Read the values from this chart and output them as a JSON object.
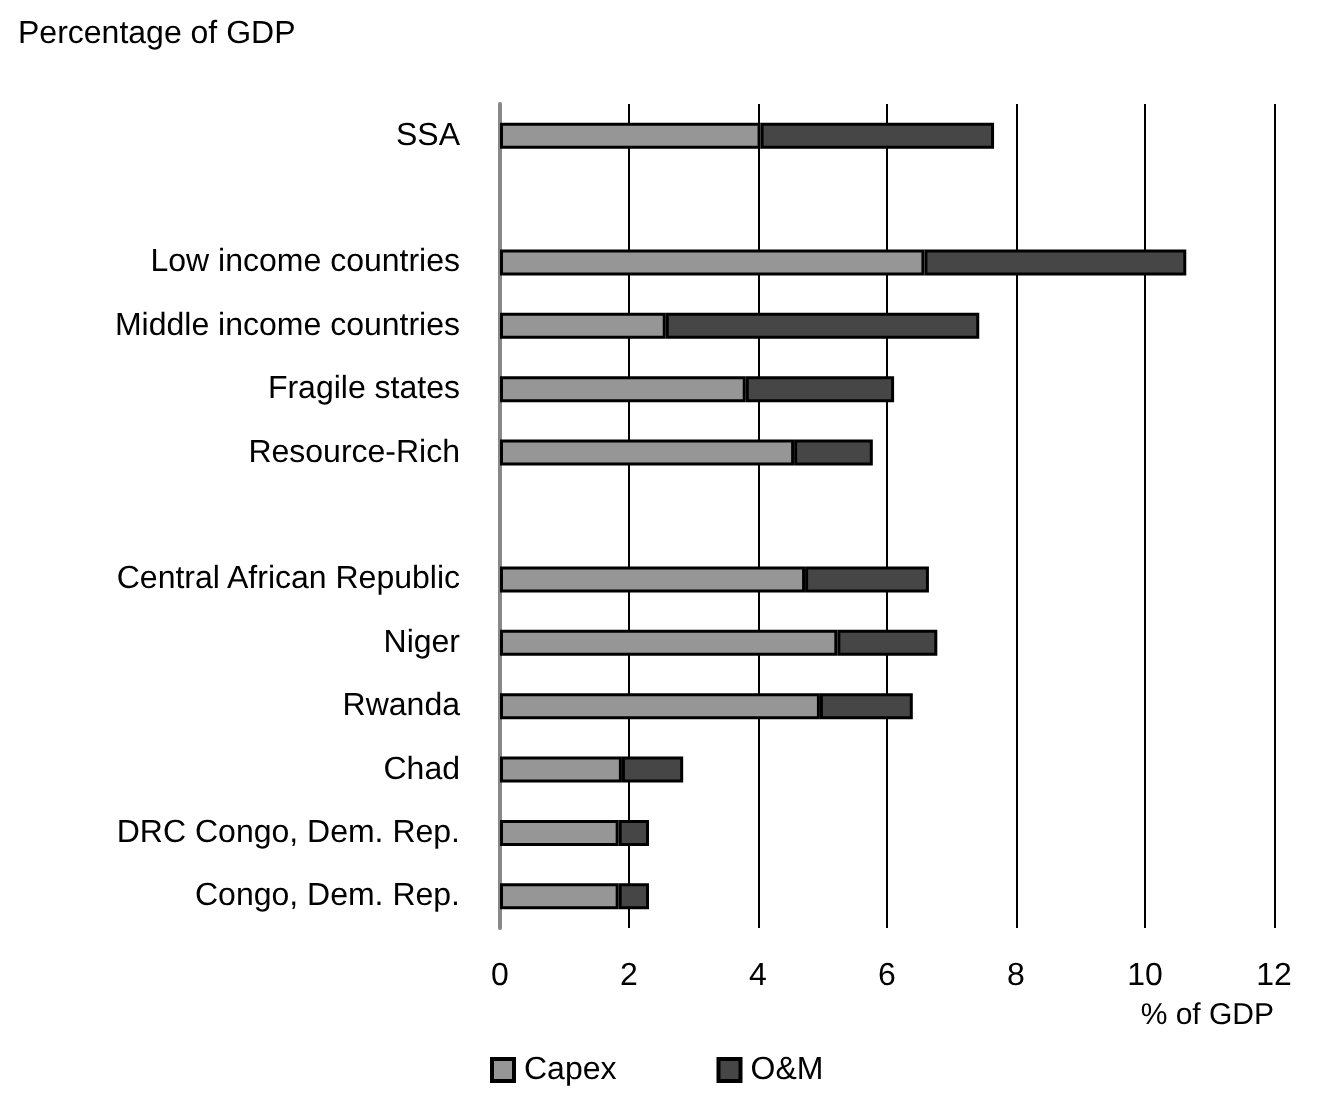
{
  "chart_data": {
    "type": "bar",
    "orientation": "horizontal",
    "stacked": true,
    "title": "Percentage of GDP",
    "xlabel": "% of GDP",
    "categories": [
      "SSA",
      null,
      "Low income countries",
      "Middle income countries",
      "Fragile states",
      "Resource-Rich",
      null,
      "Central African Republic",
      "Niger",
      "Rwanda",
      "Chad",
      "DRC Congo, Dem. Rep.",
      "Congo, Dem. Rep."
    ],
    "series": [
      {
        "name": "Capex",
        "color": "#969696",
        "values": [
          4.04,
          null,
          6.58,
          2.57,
          3.81,
          4.56,
          null,
          4.73,
          5.23,
          4.96,
          1.89,
          1.84,
          1.84
        ]
      },
      {
        "name": "O&M",
        "color": "#464646",
        "values": [
          3.62,
          null,
          4.06,
          4.86,
          2.3,
          1.22,
          null,
          1.92,
          1.55,
          1.44,
          0.95,
          0.47,
          0.47
        ]
      }
    ],
    "xlim": [
      0,
      12
    ],
    "xticks": [
      0,
      2,
      4,
      6,
      8,
      10,
      12
    ],
    "grid": "x",
    "legend": "bottom left"
  }
}
